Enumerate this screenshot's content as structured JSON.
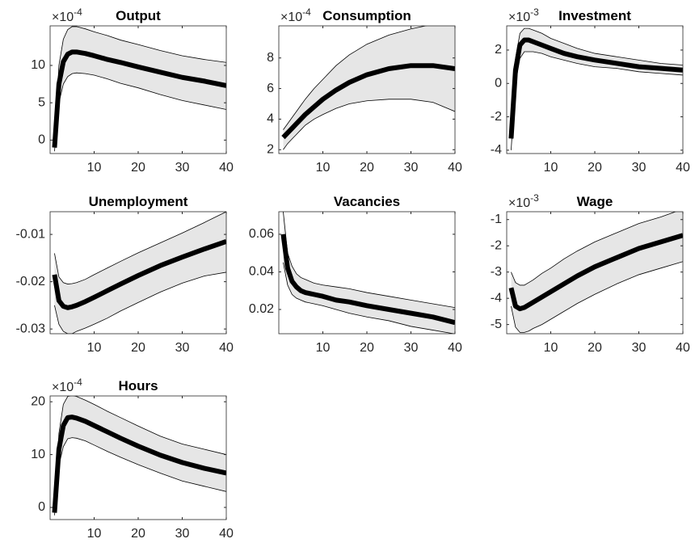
{
  "chart_data": [
    {
      "type": "line",
      "title": "Output",
      "y_multiplier": "×10",
      "y_exponent": "-4",
      "x": [
        1,
        2,
        3,
        4,
        5,
        6,
        8,
        10,
        13,
        16,
        20,
        25,
        30,
        35,
        40
      ],
      "values": [
        -1,
        7.5,
        10.5,
        11.5,
        11.8,
        11.8,
        11.6,
        11.3,
        10.8,
        10.4,
        9.8,
        9.1,
        8.4,
        7.9,
        7.3
      ],
      "band": {
        "upper": [
          -0.5,
          10,
          13.5,
          14.8,
          15.2,
          15.2,
          14.9,
          14.5,
          14,
          13.4,
          12.8,
          12,
          11.3,
          10.8,
          10.4
        ],
        "lower": [
          -1.5,
          5,
          7.5,
          8.5,
          8.9,
          9,
          8.9,
          8.7,
          8.2,
          7.6,
          7,
          6.1,
          5.3,
          4.7,
          4.1
        ],
        "color": "#e6e6e6"
      },
      "color": "#000000",
      "xlim": [
        0,
        40
      ],
      "xticks": [
        10,
        20,
        30,
        40
      ],
      "ylim": [
        -1.8,
        15.3
      ],
      "yticks": [
        0,
        5,
        10
      ]
    },
    {
      "type": "line",
      "title": "Consumption",
      "y_multiplier": "×10",
      "y_exponent": "-4",
      "x": [
        1,
        2,
        3,
        4,
        5,
        6,
        8,
        10,
        13,
        16,
        20,
        25,
        30,
        35,
        40
      ],
      "values": [
        2.8,
        3.1,
        3.4,
        3.7,
        4.0,
        4.3,
        4.8,
        5.3,
        5.9,
        6.4,
        6.9,
        7.3,
        7.5,
        7.5,
        7.3
      ],
      "band": {
        "upper": [
          3.3,
          3.7,
          4.1,
          4.5,
          4.9,
          5.3,
          6.0,
          6.6,
          7.5,
          8.2,
          8.9,
          9.5,
          9.9,
          10.2,
          10.3
        ],
        "lower": [
          2.0,
          2.4,
          2.7,
          3.0,
          3.3,
          3.6,
          4.0,
          4.3,
          4.7,
          5.0,
          5.2,
          5.3,
          5.3,
          5.1,
          4.5
        ],
        "color": "#e6e6e6"
      },
      "color": "#000000",
      "xlim": [
        0,
        40
      ],
      "xticks": [
        10,
        20,
        30,
        40
      ],
      "ylim": [
        1.75,
        10.1
      ],
      "yticks": [
        2,
        4,
        6,
        8
      ]
    },
    {
      "type": "line",
      "title": "Investment",
      "y_multiplier": "×10",
      "y_exponent": "-3",
      "x": [
        1,
        2,
        3,
        4,
        5,
        6,
        8,
        10,
        13,
        16,
        20,
        25,
        30,
        35,
        40
      ],
      "values": [
        -3.3,
        0.8,
        2.3,
        2.6,
        2.6,
        2.5,
        2.3,
        2.1,
        1.8,
        1.6,
        1.4,
        1.2,
        1.0,
        0.9,
        0.8
      ],
      "band": {
        "upper": [
          -3.0,
          1.5,
          3.0,
          3.3,
          3.3,
          3.2,
          3.0,
          2.7,
          2.4,
          2.1,
          1.8,
          1.6,
          1.4,
          1.2,
          1.1
        ],
        "lower": [
          -4.0,
          0.0,
          1.5,
          1.9,
          1.9,
          1.9,
          1.8,
          1.6,
          1.4,
          1.2,
          1.0,
          0.9,
          0.7,
          0.6,
          0.5
        ],
        "color": "#e6e6e6"
      },
      "color": "#000000",
      "xlim": [
        0,
        40
      ],
      "xticks": [
        10,
        20,
        30,
        40
      ],
      "ylim": [
        -4.2,
        3.45
      ],
      "yticks": [
        -4,
        -2,
        0,
        2
      ]
    },
    {
      "type": "line",
      "title": "Unemployment",
      "x": [
        1,
        2,
        3,
        4,
        5,
        6,
        8,
        10,
        13,
        16,
        20,
        25,
        30,
        35,
        40
      ],
      "values": [
        -0.0185,
        -0.024,
        -0.0252,
        -0.0255,
        -0.0253,
        -0.025,
        -0.0242,
        -0.0233,
        -0.0219,
        -0.0205,
        -0.0187,
        -0.0166,
        -0.0148,
        -0.0131,
        -0.0115
      ],
      "band": {
        "upper": [
          -0.014,
          -0.019,
          -0.0202,
          -0.0205,
          -0.0204,
          -0.0202,
          -0.0195,
          -0.0185,
          -0.0171,
          -0.0157,
          -0.0139,
          -0.0118,
          -0.0097,
          -0.0075,
          -0.0052
        ],
        "lower": [
          -0.025,
          -0.029,
          -0.0305,
          -0.031,
          -0.031,
          -0.0305,
          -0.0298,
          -0.029,
          -0.0277,
          -0.0262,
          -0.0244,
          -0.0222,
          -0.0203,
          -0.0188,
          -0.018
        ],
        "color": "#e6e6e6"
      },
      "color": "#000000",
      "xlim": [
        0,
        40
      ],
      "xticks": [
        10,
        20,
        30,
        40
      ],
      "ylim": [
        -0.031,
        -0.0052
      ],
      "yticks": [
        -0.03,
        -0.02,
        -0.01
      ]
    },
    {
      "type": "line",
      "title": "Vacancies",
      "x": [
        1,
        2,
        3,
        4,
        5,
        6,
        8,
        10,
        13,
        16,
        20,
        25,
        30,
        35,
        40
      ],
      "values": [
        0.06,
        0.042,
        0.035,
        0.032,
        0.03,
        0.029,
        0.028,
        0.027,
        0.025,
        0.024,
        0.022,
        0.02,
        0.018,
        0.016,
        0.013
      ],
      "band": {
        "upper": [
          0.072,
          0.05,
          0.043,
          0.039,
          0.037,
          0.036,
          0.034,
          0.033,
          0.032,
          0.031,
          0.029,
          0.027,
          0.025,
          0.023,
          0.021
        ],
        "lower": [
          0.045,
          0.033,
          0.028,
          0.026,
          0.025,
          0.024,
          0.023,
          0.022,
          0.02,
          0.018,
          0.016,
          0.014,
          0.011,
          0.009,
          0.007
        ],
        "color": "#e6e6e6"
      },
      "color": "#000000",
      "xlim": [
        0,
        40
      ],
      "xticks": [
        10,
        20,
        30,
        40
      ],
      "ylim": [
        0.0071,
        0.072
      ],
      "yticks": [
        0.02,
        0.04,
        0.06
      ]
    },
    {
      "type": "line",
      "title": "Wage",
      "y_multiplier": "×10",
      "y_exponent": "-3",
      "x": [
        1,
        2,
        3,
        4,
        5,
        6,
        8,
        10,
        13,
        16,
        20,
        25,
        30,
        35,
        40
      ],
      "values": [
        -3.6,
        -4.3,
        -4.4,
        -4.35,
        -4.25,
        -4.15,
        -3.95,
        -3.75,
        -3.45,
        -3.15,
        -2.8,
        -2.45,
        -2.1,
        -1.85,
        -1.6
      ],
      "band": {
        "upper": [
          -3.0,
          -3.4,
          -3.5,
          -3.5,
          -3.4,
          -3.3,
          -3.05,
          -2.85,
          -2.5,
          -2.2,
          -1.85,
          -1.5,
          -1.15,
          -0.9,
          -0.6
        ],
        "lower": [
          -4.3,
          -5.1,
          -5.3,
          -5.3,
          -5.25,
          -5.15,
          -5.0,
          -4.8,
          -4.5,
          -4.2,
          -3.85,
          -3.45,
          -3.1,
          -2.85,
          -2.6
        ],
        "color": "#e6e6e6"
      },
      "color": "#000000",
      "xlim": [
        0,
        40
      ],
      "xticks": [
        10,
        20,
        30,
        40
      ],
      "ylim": [
        -5.35,
        -0.7
      ],
      "yticks": [
        -5,
        -4,
        -3,
        -2,
        -1
      ]
    },
    {
      "type": "line",
      "title": "Hours",
      "y_multiplier": "×10",
      "y_exponent": "-4",
      "x": [
        1,
        2,
        3,
        4,
        5,
        6,
        8,
        10,
        13,
        16,
        20,
        25,
        30,
        35,
        40
      ],
      "values": [
        -1,
        11,
        15.5,
        17,
        17.1,
        16.9,
        16.3,
        15.5,
        14.3,
        13.1,
        11.6,
        9.9,
        8.5,
        7.4,
        6.5
      ],
      "band": {
        "upper": [
          -0.5,
          14,
          19.5,
          21,
          21.2,
          21,
          20.3,
          19.5,
          18.2,
          17,
          15.4,
          13.5,
          12,
          11,
          10
        ],
        "lower": [
          -1.5,
          8,
          11.5,
          13,
          13.2,
          13.1,
          12.6,
          11.8,
          10.6,
          9.5,
          8.1,
          6.5,
          5,
          4,
          3
        ],
        "color": "#e6e6e6"
      },
      "color": "#000000",
      "xlim": [
        0,
        40
      ],
      "xticks": [
        10,
        20,
        30,
        40
      ],
      "ylim": [
        -2.3,
        21.1
      ],
      "yticks": [
        0,
        10,
        20
      ]
    }
  ]
}
